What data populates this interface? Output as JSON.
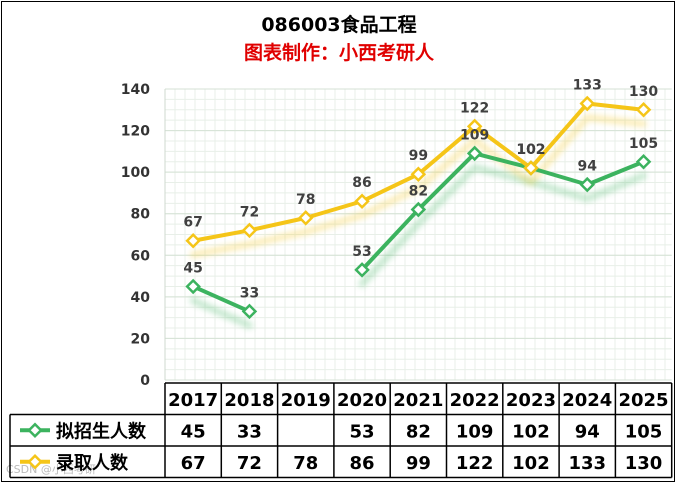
{
  "chart_data": {
    "type": "line",
    "title": "086003食品工程",
    "subtitle": "图表制作：小西考研人",
    "watermark": "CSDN @小西考研",
    "categories": [
      "2017",
      "2018",
      "2019",
      "2020",
      "2021",
      "2022",
      "2023",
      "2024",
      "2025"
    ],
    "ylim": [
      0,
      140
    ],
    "yticks": [
      "0",
      "20",
      "40",
      "60",
      "80",
      "100",
      "120",
      "140"
    ],
    "grid": true,
    "legend": "data-table",
    "series": [
      {
        "name": "拟招生人数",
        "color": "#3cb35f",
        "values": [
          45,
          33,
          null,
          53,
          82,
          109,
          102,
          94,
          105
        ],
        "labels": [
          "45",
          "33",
          "",
          "53",
          "82",
          "109",
          "102",
          "94",
          "105"
        ]
      },
      {
        "name": "录取人数",
        "color": "#f5c518",
        "values": [
          67,
          72,
          78,
          86,
          99,
          122,
          102,
          133,
          130
        ],
        "labels": [
          "67",
          "72",
          "78",
          "86",
          "99",
          "122",
          "102",
          "133",
          "130"
        ]
      }
    ]
  }
}
